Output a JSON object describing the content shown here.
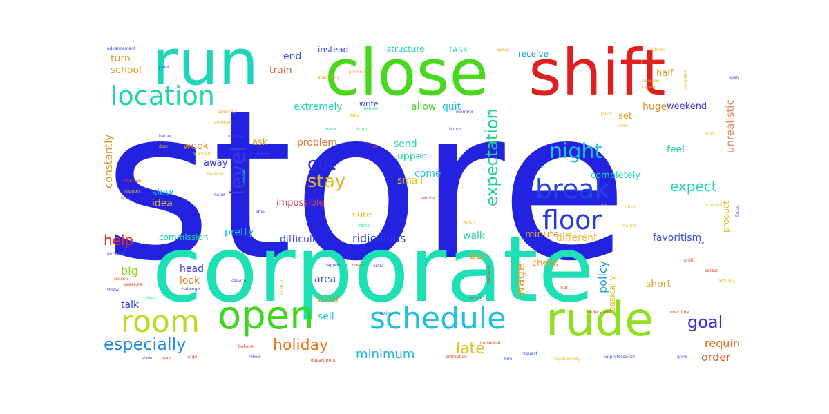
{
  "cloud": {
    "words": [
      {
        "text": "store",
        "color": "#2322e0"
      },
      {
        "text": "corporate",
        "color": "#1ee0b5"
      },
      {
        "text": "shift",
        "color": "#e0201e"
      },
      {
        "text": "close",
        "color": "#4ad81e"
      },
      {
        "text": "run",
        "color": "#1ed6ba"
      },
      {
        "text": "rude",
        "color": "#8fe01e"
      },
      {
        "text": "open",
        "color": "#3ed61e"
      },
      {
        "text": "room",
        "color": "#b6dc1e"
      },
      {
        "text": "schedule",
        "color": "#1ec2e0"
      },
      {
        "text": "location",
        "color": "#1ed6aa"
      },
      {
        "text": "break",
        "color": "#2445e0"
      },
      {
        "text": "floor",
        "color": "#2438e0"
      },
      {
        "text": "night",
        "color": "#1ec8e0"
      },
      {
        "text": "level",
        "color": "#3a3ae0"
      },
      {
        "text": "cut",
        "color": "#2a2ae0"
      },
      {
        "text": "stay",
        "color": "#e0b01e"
      },
      {
        "text": "expectation",
        "color": "#1ed68a"
      },
      {
        "text": "especially",
        "color": "#1e8ae0"
      },
      {
        "text": "holiday",
        "color": "#e07a1e"
      },
      {
        "text": "late",
        "color": "#e0c21e"
      },
      {
        "text": "goal",
        "color": "#3a2ae0"
      },
      {
        "text": "minimum",
        "color": "#1eb0e0"
      },
      {
        "text": "help",
        "color": "#e0301e"
      },
      {
        "text": "expect",
        "color": "#1ed6c0"
      },
      {
        "text": "wage",
        "color": "#e0a01e"
      },
      {
        "text": "policy",
        "color": "#1ea0e0"
      },
      {
        "text": "require",
        "color": "#e06a1e"
      },
      {
        "text": "order",
        "color": "#e05a1e"
      },
      {
        "text": "unrealistic",
        "color": "#e08a6a"
      },
      {
        "text": "constantly",
        "color": "#e0901e"
      },
      {
        "text": "favoritism",
        "color": "#3a4ae0"
      },
      {
        "text": "different",
        "color": "#e0c04a"
      },
      {
        "text": "ridiculous",
        "color": "#2a3ae0"
      },
      {
        "text": "difficult",
        "color": "#3a4ae0"
      },
      {
        "text": "pretty",
        "color": "#1ec0e0"
      },
      {
        "text": "commission",
        "color": "#1ed6a0"
      },
      {
        "text": "minute",
        "color": "#e0a04a"
      },
      {
        "text": "walk",
        "color": "#1ed6a0"
      },
      {
        "text": "impossible",
        "color": "#e0404a"
      },
      {
        "text": "small",
        "color": "#e0c01e"
      },
      {
        "text": "come",
        "color": "#1ec0e0"
      },
      {
        "text": "upper",
        "color": "#1ed6a0"
      },
      {
        "text": "problem",
        "color": "#e06a1e"
      },
      {
        "text": "extremely",
        "color": "#1ed6b0"
      },
      {
        "text": "allow",
        "color": "#4ad81e"
      },
      {
        "text": "quit",
        "color": "#1ec0e0"
      },
      {
        "text": "huge",
        "color": "#e0901e"
      },
      {
        "text": "weekend",
        "color": "#3a3ae0"
      },
      {
        "text": "set",
        "color": "#e0a01e"
      },
      {
        "text": "feel",
        "color": "#1ed6a0"
      },
      {
        "text": "completely",
        "color": "#1ed6b0"
      },
      {
        "text": "send",
        "color": "#1ed6c0"
      },
      {
        "text": "ask",
        "color": "#e0a01e"
      },
      {
        "text": "week",
        "color": "#e0801e"
      },
      {
        "text": "away",
        "color": "#3a3ae0"
      },
      {
        "text": "slow",
        "color": "#1ec0e0"
      },
      {
        "text": "idea",
        "color": "#e0c01e"
      },
      {
        "text": "big",
        "color": "#8ad81e"
      },
      {
        "text": "look",
        "color": "#e0801e"
      },
      {
        "text": "head",
        "color": "#3a3ae0"
      },
      {
        "text": "talk",
        "color": "#2a3ae0"
      },
      {
        "text": "area",
        "color": "#3a4ae0"
      },
      {
        "text": "deal",
        "color": "#e0901e"
      },
      {
        "text": "sell",
        "color": "#1ec0e0"
      },
      {
        "text": "buy",
        "color": "#e0a01e"
      },
      {
        "text": "check",
        "color": "#e0a01e"
      },
      {
        "text": "short",
        "color": "#e0a01e"
      },
      {
        "text": "basically",
        "color": "#e0c01e"
      },
      {
        "text": "product",
        "color": "#e0c01e"
      },
      {
        "text": "school",
        "color": "#e0a01e"
      },
      {
        "text": "turn",
        "color": "#e0a01e"
      },
      {
        "text": "train",
        "color": "#e0601e"
      },
      {
        "text": "end",
        "color": "#3a4ae0"
      },
      {
        "text": "instead",
        "color": "#3a4ae0"
      },
      {
        "text": "structure",
        "color": "#1ed6b0"
      },
      {
        "text": "task",
        "color": "#1ed6b0"
      },
      {
        "text": "receive",
        "color": "#1ea0e0"
      },
      {
        "text": "half",
        "color": "#e0a01e"
      },
      {
        "text": "write",
        "color": "#3a3ae0"
      },
      {
        "text": "sure",
        "color": "#e0c01e"
      },
      {
        "text": "advancement",
        "color": "#3a4ae0"
      },
      {
        "text": "point",
        "color": "#3a4ae0"
      },
      {
        "text": "absolutely",
        "color": "#e0a01e"
      },
      {
        "text": "promote",
        "color": "#e0a01e"
      },
      {
        "text": "speak",
        "color": "#e0a01e"
      },
      {
        "text": "average",
        "color": "#e0a01e"
      },
      {
        "text": "career",
        "color": "#e0a01e"
      },
      {
        "text": "outside",
        "color": "#e0c01e"
      },
      {
        "text": "complete",
        "color": "#e0c01e"
      },
      {
        "text": "spend",
        "color": "#3a4ae0"
      },
      {
        "text": "seniority",
        "color": "#e0a01e"
      },
      {
        "text": "program",
        "color": "#e0c01e"
      },
      {
        "text": "daily",
        "color": "#e0c01e"
      },
      {
        "text": "include",
        "color": "#1ed6b0"
      },
      {
        "text": "listen",
        "color": "#1ed6b0"
      },
      {
        "text": "bonus",
        "color": "#3a4ae0"
      },
      {
        "text": "member",
        "color": "#3a4ae0"
      },
      {
        "text": "email",
        "color": "#e0c01e"
      },
      {
        "text": "push",
        "color": "#e0c01e"
      },
      {
        "text": "hold",
        "color": "#e0c01e"
      },
      {
        "text": "better",
        "color": "#3a4ae0"
      },
      {
        "text": "number",
        "color": "#3a4ae0"
      },
      {
        "text": "door",
        "color": "#e0c01e"
      },
      {
        "text": "standard",
        "color": "#e0c01e"
      },
      {
        "text": "unless",
        "color": "#3a4ae0"
      },
      {
        "text": "rule",
        "color": "#e0401e"
      },
      {
        "text": "manage",
        "color": "#e0401e"
      },
      {
        "text": "balance",
        "color": "#e0c01e"
      },
      {
        "text": "cause",
        "color": "#1ed6b0"
      },
      {
        "text": "leave",
        "color": "#1ed6b0"
      },
      {
        "text": "stressful",
        "color": "#e0c01e"
      },
      {
        "text": "lunch",
        "color": "#e0c01e"
      },
      {
        "text": "far",
        "color": "#e0c01e"
      },
      {
        "text": "market",
        "color": "#e0c01e"
      },
      {
        "text": "worth",
        "color": "#e0c01e"
      },
      {
        "text": "worker",
        "color": "#e0401e"
      },
      {
        "text": "force",
        "color": "#1ed6b0"
      },
      {
        "text": "support",
        "color": "#e0c01e"
      },
      {
        "text": "bring",
        "color": "#3a4ae0"
      },
      {
        "text": "hand",
        "color": "#3a4ae0"
      },
      {
        "text": "able",
        "color": "#3a4ae0"
      },
      {
        "text": "life",
        "color": "#3a4ae0"
      },
      {
        "text": "focus",
        "color": "#3a4ae0"
      },
      {
        "text": "personal",
        "color": "#3a4ae0"
      },
      {
        "text": "happen",
        "color": "#3a4ae0"
      },
      {
        "text": "mean",
        "color": "#e0401e"
      },
      {
        "text": "extra",
        "color": "#3a4ae0"
      },
      {
        "text": "reason",
        "color": "#e0401e"
      },
      {
        "text": "pressure",
        "color": "#e0401e"
      },
      {
        "text": "throw",
        "color": "#3a4ae0"
      },
      {
        "text": "service",
        "color": "#3a4ae0"
      },
      {
        "text": "challenge",
        "color": "#3a4ae0"
      },
      {
        "text": "clear",
        "color": "#1ed6b0"
      },
      {
        "text": "chance",
        "color": "#e0c01e"
      },
      {
        "text": "wrong",
        "color": "#e0401e"
      },
      {
        "text": "profit",
        "color": "#e0401e"
      },
      {
        "text": "person",
        "color": "#e0401e"
      },
      {
        "text": "actually",
        "color": "#e0c01e"
      },
      {
        "text": "fear",
        "color": "#e0401e"
      },
      {
        "text": "understand",
        "color": "#e0401e"
      },
      {
        "text": "overtime",
        "color": "#e0401e"
      },
      {
        "text": "hire",
        "color": "#3a4ae0"
      },
      {
        "text": "responsibility",
        "color": "#e0c01e"
      },
      {
        "text": "unprofessional",
        "color": "#3a4ae0"
      },
      {
        "text": "grow",
        "color": "#3a4ae0"
      },
      {
        "text": "show",
        "color": "#3a4ae0"
      },
      {
        "text": "wait",
        "color": "#e0401e"
      },
      {
        "text": "large",
        "color": "#e0401e"
      },
      {
        "text": "believe",
        "color": "#e0401e"
      },
      {
        "text": "follow",
        "color": "#3a4ae0"
      },
      {
        "text": "department",
        "color": "#e0401e"
      },
      {
        "text": "promotion",
        "color": "#e0401e"
      },
      {
        "text": "individual",
        "color": "#e0401e"
      },
      {
        "text": "request",
        "color": "#3a4ae0"
      },
      {
        "text": "claim",
        "color": "#3a4ae0"
      },
      {
        "text": "business",
        "color": "#e0401e"
      }
    ]
  }
}
